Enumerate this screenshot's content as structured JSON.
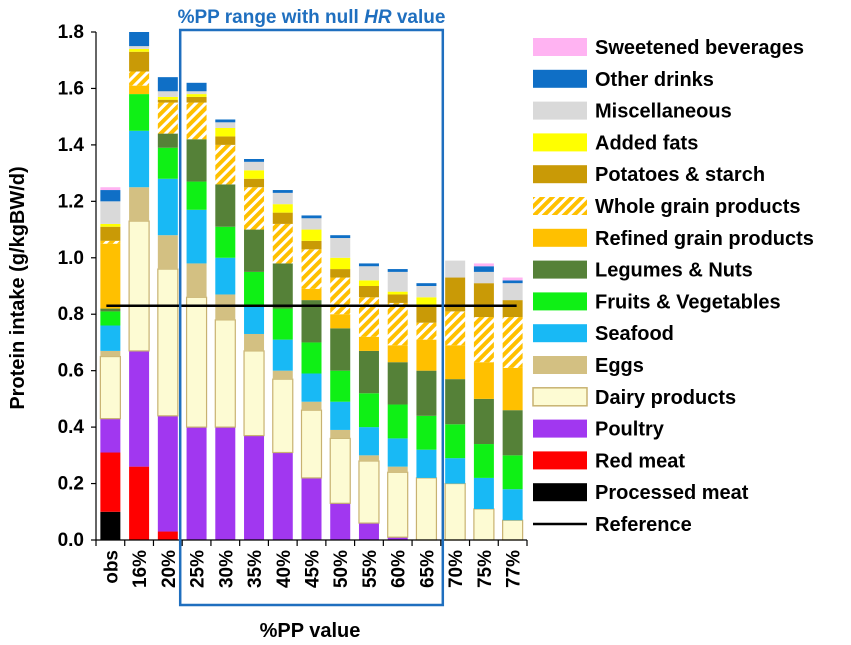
{
  "chart_data": {
    "type": "bar",
    "stacked": true,
    "xlabel": "%PP value",
    "ylabel": "Protein intake (g/kgBW/d)",
    "ylim": [
      0,
      1.8
    ],
    "yticks": [
      "0.0",
      "0.2",
      "0.4",
      "0.6",
      "0.8",
      "1.0",
      "1.2",
      "1.4",
      "1.6",
      "1.8"
    ],
    "categories": [
      "obs",
      "16%",
      "20%",
      "25%",
      "30%",
      "35%",
      "40%",
      "45%",
      "50%",
      "55%",
      "60%",
      "65%",
      "70%",
      "75%",
      "77%"
    ],
    "annotation": {
      "text_prefix": "%PP range with null ",
      "text_italic": "HR",
      "text_suffix": " value",
      "from_category": "25%",
      "to_category": "65%",
      "color": "#1f6fbf"
    },
    "reference": {
      "name": "Reference",
      "value": 0.83
    },
    "series": [
      {
        "name": "Processed meat",
        "color": "#000000",
        "hatch": false,
        "values": [
          0.1,
          0,
          0,
          0,
          0,
          0,
          0,
          0,
          0,
          0,
          0,
          0,
          0,
          0,
          0
        ]
      },
      {
        "name": "Red meat",
        "color": "#ff0000",
        "hatch": false,
        "values": [
          0.21,
          0.26,
          0.03,
          0,
          0,
          0,
          0,
          0,
          0,
          0,
          0,
          0,
          0,
          0,
          0
        ]
      },
      {
        "name": "Poultry",
        "color": "#a137f0",
        "hatch": false,
        "values": [
          0.12,
          0.41,
          0.41,
          0.4,
          0.4,
          0.37,
          0.31,
          0.22,
          0.13,
          0.06,
          0.01,
          0,
          0,
          0,
          0
        ]
      },
      {
        "name": "Dairy products",
        "color": "#fdfbd3",
        "hatch": false,
        "outline": "#c8b271",
        "values": [
          0.22,
          0.46,
          0.52,
          0.46,
          0.38,
          0.3,
          0.26,
          0.24,
          0.23,
          0.22,
          0.23,
          0.22,
          0.2,
          0.11,
          0.07
        ]
      },
      {
        "name": "Eggs",
        "color": "#d3c082",
        "hatch": false,
        "values": [
          0.02,
          0.12,
          0.12,
          0.12,
          0.09,
          0.06,
          0.03,
          0.03,
          0.03,
          0.02,
          0.02,
          0,
          0,
          0,
          0
        ]
      },
      {
        "name": "Seafood",
        "color": "#18b9f5",
        "hatch": false,
        "values": [
          0.09,
          0.2,
          0.2,
          0.19,
          0.13,
          0.1,
          0.11,
          0.1,
          0.1,
          0.1,
          0.1,
          0.1,
          0.09,
          0.11,
          0.11
        ]
      },
      {
        "name": "Fruits & Vegetables",
        "color": "#0ff015",
        "hatch": false,
        "values": [
          0.05,
          0.13,
          0.11,
          0.1,
          0.11,
          0.12,
          0.11,
          0.11,
          0.11,
          0.12,
          0.12,
          0.12,
          0.12,
          0.12,
          0.12
        ]
      },
      {
        "name": "Legumes & Nuts",
        "color": "#558138",
        "hatch": false,
        "values": [
          0.01,
          0,
          0.05,
          0.15,
          0.15,
          0.15,
          0.16,
          0.15,
          0.15,
          0.15,
          0.15,
          0.16,
          0.16,
          0.16,
          0.16
        ]
      },
      {
        "name": "Refined grain products",
        "color": "#ffc000",
        "hatch": false,
        "values": [
          0.23,
          0.03,
          0,
          0,
          0,
          0,
          0,
          0.04,
          0.05,
          0.05,
          0.06,
          0.11,
          0.12,
          0.13,
          0.15
        ]
      },
      {
        "name": "Whole grain products",
        "color": "#ffc000",
        "hatch": true,
        "values": [
          0.01,
          0.05,
          0.11,
          0.13,
          0.14,
          0.15,
          0.14,
          0.14,
          0.13,
          0.14,
          0.15,
          0.06,
          0.12,
          0.16,
          0.18
        ]
      },
      {
        "name": "Potatoes & starch",
        "color": "#c99a06",
        "hatch": false,
        "values": [
          0.05,
          0.07,
          0.01,
          0.02,
          0.03,
          0.03,
          0.04,
          0.03,
          0.03,
          0.04,
          0.03,
          0.06,
          0.12,
          0.12,
          0.06
        ]
      },
      {
        "name": "Added fats",
        "color": "#ffff00",
        "hatch": false,
        "values": [
          0.01,
          0.01,
          0.01,
          0.01,
          0.03,
          0.03,
          0.03,
          0.04,
          0.04,
          0.02,
          0.01,
          0.03,
          0,
          0,
          0
        ]
      },
      {
        "name": "Miscellaneous",
        "color": "#d9d9d9",
        "hatch": false,
        "values": [
          0.08,
          0.01,
          0.02,
          0.01,
          0.02,
          0.03,
          0.04,
          0.04,
          0.07,
          0.05,
          0.07,
          0.04,
          0.06,
          0.04,
          0.06
        ]
      },
      {
        "name": "Other drinks",
        "color": "#0f6fc6",
        "hatch": false,
        "values": [
          0.04,
          0.05,
          0.05,
          0.03,
          0.01,
          0.01,
          0.01,
          0.01,
          0.01,
          0.01,
          0.01,
          0.01,
          0,
          0.02,
          0.01
        ]
      },
      {
        "name": "Sweetened beverages",
        "color": "#ffb3f2",
        "hatch": false,
        "values": [
          0.01,
          0,
          0,
          0,
          0,
          0,
          0,
          0,
          0,
          0,
          0,
          0,
          0,
          0.01,
          0.01
        ]
      }
    ]
  }
}
